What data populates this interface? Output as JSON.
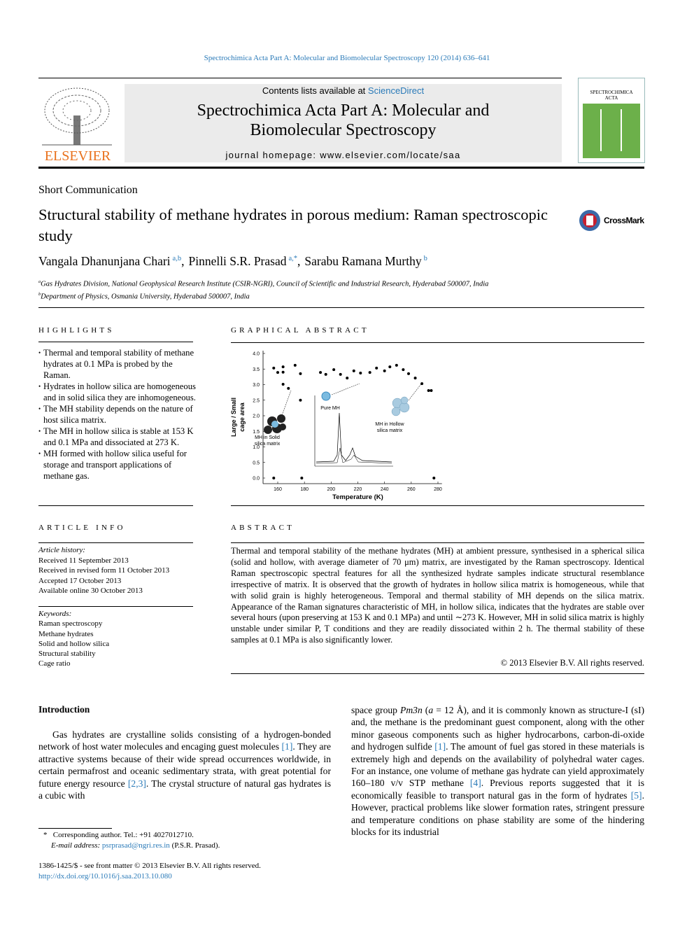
{
  "header": {
    "journal_ref": "Spectrochimica Acta Part A: Molecular and Biomolecular Spectroscopy 120 (2014) 636–641",
    "contents_prefix": "Contents lists available at",
    "contents_link": "ScienceDirect",
    "journal_title": [
      "Spectrochimica Acta Part A: Molecular and",
      "Biomolecular Spectroscopy"
    ],
    "homepage_prefix": "journal homepage:",
    "homepage_url": "www.elsevier.com/locate/saa",
    "publisher": "ELSEVIER",
    "cover_title": [
      "SPECTROCHIMICA",
      "ACTA"
    ],
    "crossmark": "CrossMark"
  },
  "article": {
    "type": "Short Communication",
    "title": "Structural stability of methane hydrates in porous medium: Raman spectroscopic study",
    "authors": [
      {
        "name": "Vangala Dhanunjana Chari",
        "sup": "a,b",
        "sep": ","
      },
      {
        "name": "Pinnelli S.R. Prasad",
        "sup": "a,*",
        "sep": ","
      },
      {
        "name": "Sarabu Ramana Murthy",
        "sup": "b"
      }
    ],
    "affiliations": [
      {
        "sup": "a",
        "text": "Gas Hydrates Division, National Geophysical Research Institute (CSIR-NGRI), Council of Scientific and Industrial Research, Hyderabad 500007, India"
      },
      {
        "sup": "b",
        "text": "Department of Physics, Osmania University, Hyderabad 500007, India"
      }
    ]
  },
  "highlights": {
    "heading": "HIGHLIGHTS",
    "items": [
      "Thermal and temporal stability of methane hydrates at 0.1 MPa is probed by the Raman.",
      "Hydrates in hollow silica are homogeneous and in solid silica they are inhomogeneous.",
      "The MH stability depends on the nature of host silica matrix.",
      "The MH in hollow silica is stable at 153 K and 0.1 MPa and dissociated at 273 K.",
      "MH formed with hollow silica useful for storage and transport applications of methane gas."
    ]
  },
  "graphical_abstract": {
    "heading": "GRAPHICAL ABSTRACT",
    "chart_data": {
      "type": "scatter",
      "x_label": "Temperature (K)",
      "y_label": [
        "Large / Small",
        "cage area"
      ],
      "annotations": [
        [
          "Pure MH"
        ],
        [
          "MH in Solid",
          "silica matrix"
        ],
        [
          "MH in Hollow",
          "silica matrix"
        ]
      ],
      "color": "#000000",
      "xlim": [
        149,
        283
      ],
      "ylim": [
        0,
        4
      ],
      "xticks": [
        160,
        180,
        200,
        220,
        240,
        260,
        280
      ],
      "yticks": [
        {
          "value": 0,
          "label": "0.0"
        },
        {
          "value": 0.5,
          "label": "0.5"
        },
        {
          "value": 1,
          "label": "1.0"
        },
        {
          "value": 1.5,
          "label": "1.5"
        },
        {
          "value": 2,
          "label": "2.0"
        },
        {
          "value": 2.5,
          "label": "2.5"
        },
        {
          "value": 3,
          "label": "3.0"
        },
        {
          "value": 3.5,
          "label": "3.5"
        },
        {
          "value": 4,
          "label": "4.0"
        }
      ],
      "x": [
        157,
        160,
        164,
        164,
        173,
        177,
        164,
        168,
        177,
        157,
        178,
        277,
        192,
        196,
        202,
        207,
        212,
        217,
        222,
        229,
        234,
        240,
        244,
        249,
        254,
        258,
        263,
        268,
        273,
        275
      ],
      "values": [
        3.53,
        3.39,
        3.57,
        3.4,
        3.62,
        3.35,
        3.01,
        2.88,
        2.5,
        0,
        0,
        0,
        3.39,
        3.33,
        3.48,
        3.33,
        3.21,
        3.44,
        3.37,
        3.39,
        3.53,
        3.44,
        3.57,
        3.62,
        3.48,
        3.35,
        3.21,
        3.03,
        2.81,
        2.81
      ]
    }
  },
  "article_info": {
    "heading": "ARTICLE INFO",
    "history_label": "Article history:",
    "history": [
      "Received 11 September 2013",
      "Received in revised form 11 October 2013",
      "Accepted 17 October 2013",
      "Available online 30 October 2013"
    ],
    "keywords_label": "Keywords:",
    "keywords": [
      "Raman spectroscopy",
      "Methane hydrates",
      "Solid and hollow silica",
      "Structural stability",
      "Cage ratio"
    ]
  },
  "abstract": {
    "heading": "ABSTRACT",
    "text": "Thermal and temporal stability of the methane hydrates (MH) at ambient pressure, synthesised in a spherical silica (solid and hollow, with average diameter of 70 μm) matrix, are investigated by the Raman spectroscopy. Identical Raman spectroscopic spectral features for all the synthesized hydrate samples indicate structural resemblance irrespective of matrix. It is observed that the growth of hydrates in hollow silica matrix is homogeneous, while that with solid grain is highly heterogeneous. Temporal and thermal stability of MH depends on the silica matrix. Appearance of the Raman signatures characteristic of MH, in hollow silica, indicates that the hydrates are stable over several hours (upon preserving at 153 K and 0.1 MPa) and until ∼273 K. However, MH in solid silica matrix is highly unstable under similar P, T conditions and they are readily dissociated within 2 h. The thermal stability of these samples at 0.1 MPa is also significantly lower.",
    "copyright": "© 2013 Elsevier B.V. All rights reserved."
  },
  "introduction": {
    "heading": "Introduction",
    "left": [
      "Gas hydrates are crystalline solids consisting of a hydrogen-bonded network of host water molecules and encaging guest molecules ",
      {
        "cite": "[1]"
      },
      ". They are attractive systems because of their wide spread occurrences worldwide, in certain permafrost and oceanic sedimentary strata, with great potential for future energy resource ",
      {
        "cite": "[2,3]"
      },
      ". The crystal structure of natural gas hydrates is a cubic with"
    ],
    "right": [
      "space group ",
      {
        "i": "Pm3n"
      },
      " (",
      {
        "i": "a"
      },
      " = 12 Å), and it is commonly known as structure-I (sI) and, the methane is the predominant guest component, along with the other minor gaseous components such as higher hydrocarbons, carbon-di-oxide and hydrogen sulfide ",
      {
        "cite": "[1]"
      },
      ". The amount of fuel gas stored in these materials is extremely high and depends on the availability of polyhedral water cages. For an instance, one volume of methane gas hydrate can yield approximately 160–180 v/v STP methane ",
      {
        "cite": "[4]"
      },
      ". Previous reports suggested that it is economically feasible to transport natural gas in the form of hydrates ",
      {
        "cite": "[5]"
      },
      ". However, practical problems like slower formation rates, stringent pressure and temperature conditions on phase stability are some of the hindering blocks for its industrial"
    ]
  },
  "footnotes": {
    "corresponding_mark": "*",
    "corresponding": "Corresponding author. Tel.: +91 4027012710.",
    "email_label": "E-mail address:",
    "email": "psrprasad@ngri.res.in",
    "email_name": "(P.S.R. Prasad)."
  },
  "footer": {
    "issn": "1386-1425/$ - see front matter © 2013 Elsevier B.V. All rights reserved.",
    "doi": "http://dx.doi.org/10.1016/j.saa.2013.10.080"
  }
}
